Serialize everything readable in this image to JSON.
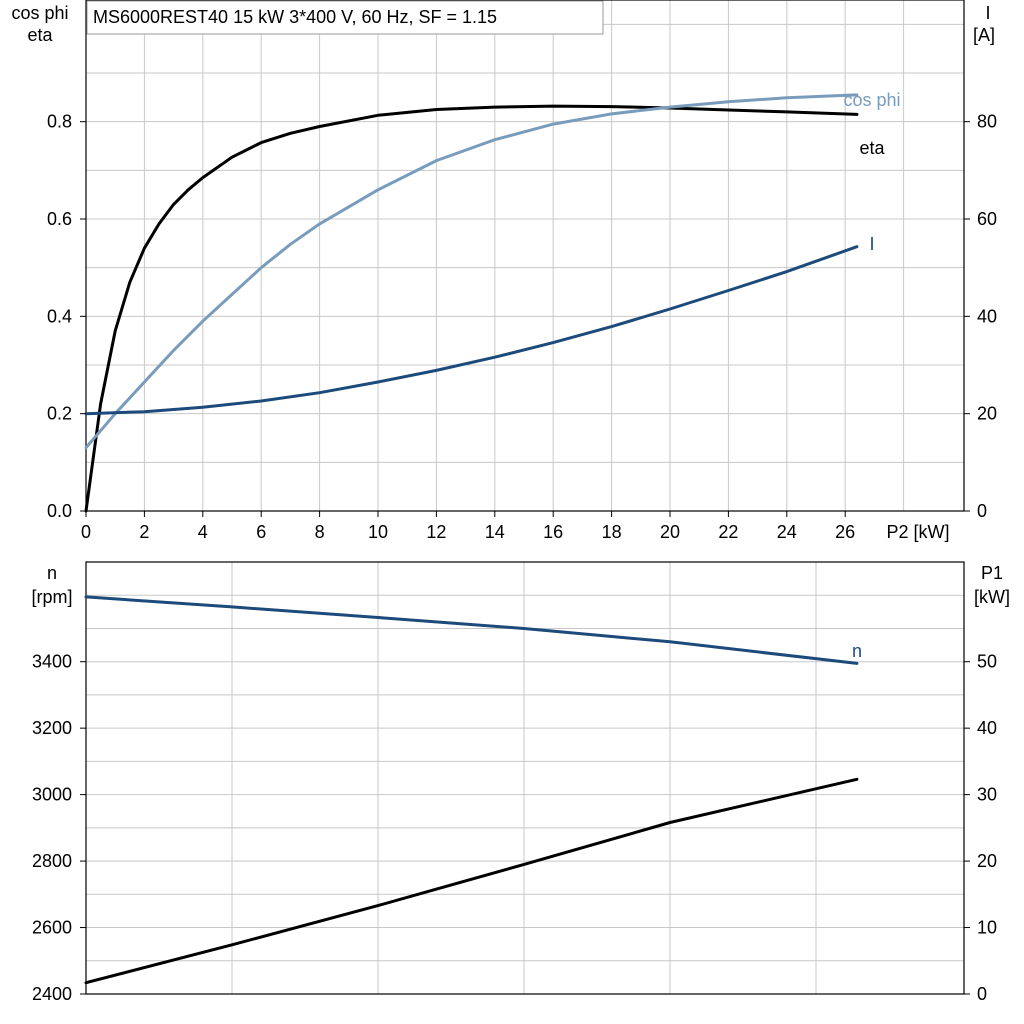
{
  "title": "MS6000REST40   15 kW   3*400 V, 60 Hz, SF = 1.15",
  "colors": {
    "eta": "#000000",
    "cos_phi": "#7a9cbc",
    "current": "#1c4a7a",
    "speed": "#1c4a7a",
    "p1": "#000000",
    "grid": "#c8c8c8"
  },
  "chart_data": [
    {
      "type": "line",
      "panel": "top",
      "x_axis": {
        "label": "P2 [kW]",
        "range": [
          0,
          30
        ],
        "ticks": [
          0,
          2,
          4,
          6,
          8,
          10,
          12,
          14,
          16,
          18,
          20,
          22,
          24,
          26
        ]
      },
      "y_left": {
        "label_line1": "cos phi",
        "label_line2": "eta",
        "range": [
          0,
          1.05
        ],
        "ticks": [
          "0.0",
          "0.2",
          "0.4",
          "0.6",
          "0.8"
        ],
        "tick_values": [
          0,
          0.2,
          0.4,
          0.6,
          0.8
        ]
      },
      "y_right": {
        "label_line1": "I",
        "label_line2": "[A]",
        "range": [
          0,
          105
        ],
        "ticks": [
          "0",
          "20",
          "40",
          "60",
          "80"
        ],
        "tick_values": [
          0,
          20,
          40,
          60,
          80
        ]
      },
      "grid": true,
      "series": [
        {
          "name": "eta",
          "axis": "left",
          "color": "#000000",
          "x": [
            0,
            0.5,
            1,
            1.5,
            2,
            2.5,
            3,
            3.5,
            4,
            5,
            6,
            7,
            8,
            10,
            12,
            14,
            16,
            18,
            20,
            22,
            24,
            26.4
          ],
          "y": [
            0,
            0.22,
            0.37,
            0.47,
            0.54,
            0.59,
            0.63,
            0.66,
            0.685,
            0.727,
            0.757,
            0.776,
            0.79,
            0.813,
            0.825,
            0.83,
            0.832,
            0.831,
            0.828,
            0.824,
            0.82,
            0.815
          ]
        },
        {
          "name": "cos phi",
          "axis": "left",
          "color": "#7a9cbc",
          "x": [
            0,
            1,
            2,
            3,
            4,
            5,
            6,
            7,
            8,
            10,
            12,
            14,
            16,
            18,
            20,
            22,
            24,
            26.4
          ],
          "y": [
            0.13,
            0.2,
            0.265,
            0.33,
            0.39,
            0.445,
            0.5,
            0.548,
            0.59,
            0.66,
            0.72,
            0.763,
            0.795,
            0.816,
            0.83,
            0.841,
            0.849,
            0.855
          ]
        },
        {
          "name": "I",
          "axis": "right",
          "color": "#1c4a7a",
          "x": [
            0,
            2,
            4,
            6,
            8,
            10,
            12,
            14,
            16,
            18,
            20,
            22,
            24,
            26.4
          ],
          "y": [
            20,
            20.4,
            21.3,
            22.6,
            24.3,
            26.5,
            28.9,
            31.6,
            34.6,
            37.9,
            41.5,
            45.3,
            49.2,
            54.3
          ]
        }
      ],
      "series_labels": [
        "cos phi",
        "eta",
        "I"
      ]
    },
    {
      "type": "line",
      "panel": "bottom",
      "x_axis": {
        "range": [
          0,
          30
        ]
      },
      "y_left": {
        "label_line1": "n",
        "label_line2": "[rpm]",
        "range": [
          2400,
          3700
        ],
        "ticks": [
          "2400",
          "2600",
          "2800",
          "3000",
          "3200",
          "3400"
        ],
        "tick_values": [
          2400,
          2600,
          2800,
          3000,
          3200,
          3400
        ]
      },
      "y_right": {
        "label_line1": "P1",
        "label_line2": "[kW]",
        "range": [
          0,
          65
        ],
        "ticks": [
          "0",
          "10",
          "20",
          "30",
          "40",
          "50"
        ],
        "tick_values": [
          0,
          10,
          20,
          30,
          40,
          50
        ]
      },
      "grid": true,
      "series": [
        {
          "name": "n",
          "axis": "left",
          "color": "#1c4a7a",
          "x": [
            0,
            5,
            10,
            15,
            20,
            26.4
          ],
          "y": [
            3595,
            3565,
            3533,
            3500,
            3460,
            3395
          ]
        },
        {
          "name": "",
          "axis": "right",
          "color": "#000000",
          "x": [
            0,
            5,
            10,
            15,
            20,
            26.4
          ],
          "y": [
            1.7,
            7.4,
            13.3,
            19.5,
            25.8,
            32.3
          ]
        }
      ],
      "series_labels": [
        "n"
      ]
    }
  ]
}
